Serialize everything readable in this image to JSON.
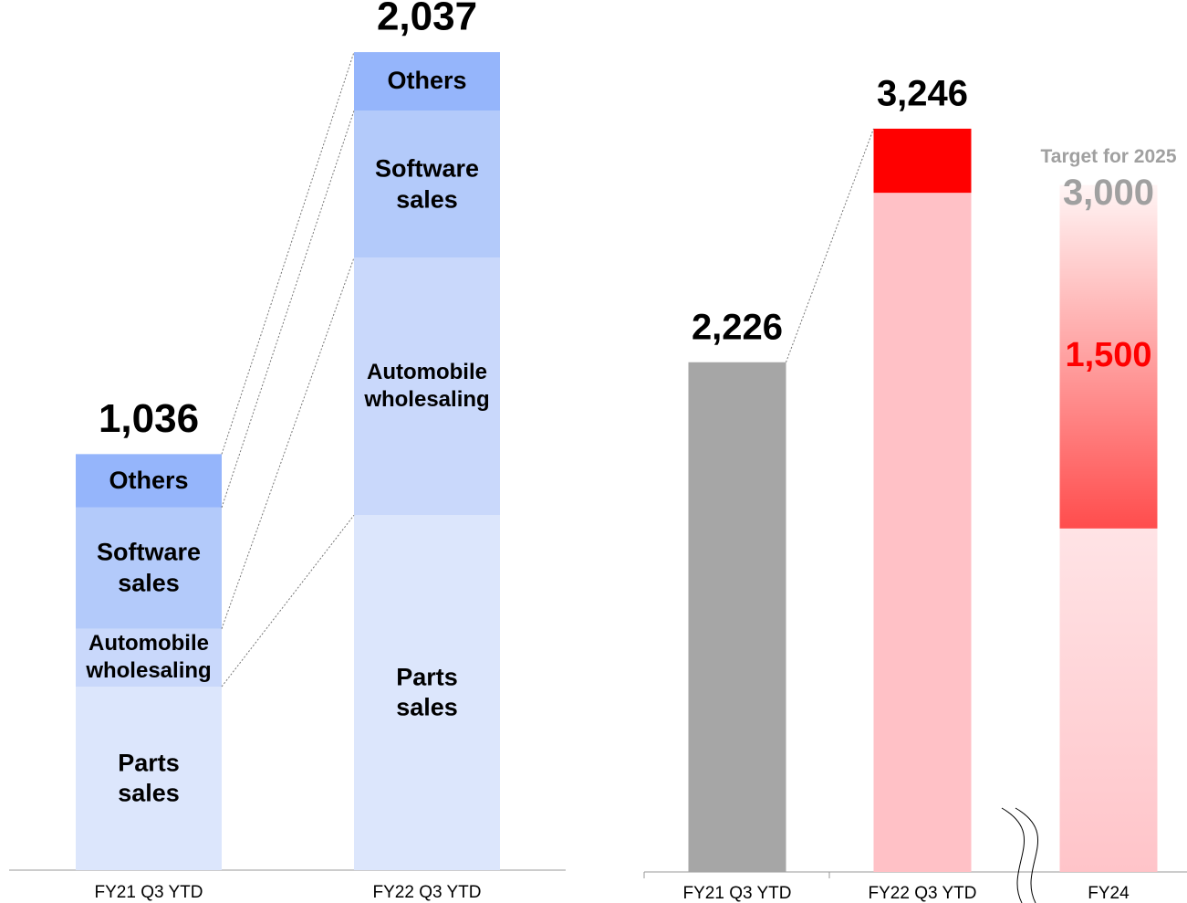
{
  "chart_data": [
    {
      "type": "stacked_bar",
      "categories": [
        "FY21 Q3 YTD",
        "FY22 Q3 YTD"
      ],
      "series": [
        {
          "name": "Parts sales",
          "color": "#dce6fc",
          "values": [
            457,
            884
          ]
        },
        {
          "name": "Automobile wholesaling",
          "color": "#c9d8fb",
          "values": [
            144,
            641
          ]
        },
        {
          "name": "Software sales",
          "color": "#b3cafa",
          "values": [
            302,
            366
          ]
        },
        {
          "name": "Others",
          "color": "#95b5fb",
          "values": [
            133,
            146
          ]
        }
      ],
      "totals": [
        1036,
        2037
      ],
      "total_labels": [
        "1,036",
        "2,037"
      ],
      "ylim": [
        0,
        2160
      ]
    },
    {
      "type": "stacked_bar",
      "categories": [
        "FY21 Q3 YTD",
        "FY22 Q3 YTD",
        "FY24"
      ],
      "series": [
        {
          "colors": [
            "#a6a6a6",
            "#ffc1c6",
            "#ffc1c6"
          ],
          "values": [
            2226,
            2966,
            1500
          ]
        },
        {
          "color": "#ff0000",
          "values": [
            null,
            280,
            1500
          ],
          "value_labels": [
            null,
            "280",
            "1,500"
          ]
        }
      ],
      "totals": [
        2226,
        3246,
        3000
      ],
      "total_labels": [
        "2,226",
        "3,246",
        "3,000"
      ],
      "total_colors": [
        "#000000",
        "#000000",
        "#a0a0a0"
      ],
      "annotation": "Target for 2025",
      "axis_break": true,
      "ylim": [
        0,
        3800
      ]
    }
  ]
}
